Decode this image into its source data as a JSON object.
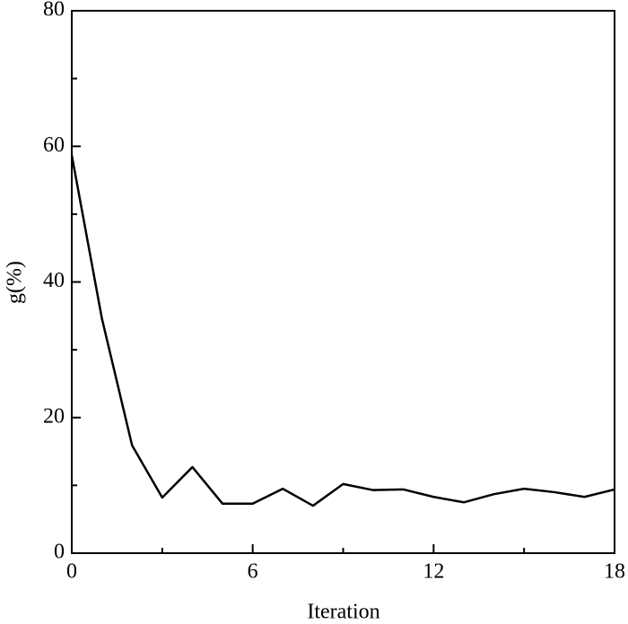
{
  "chart_data": {
    "type": "line",
    "x_label": "Iteration",
    "y_label": "g(%)",
    "x": [
      0,
      1,
      2,
      3,
      4,
      5,
      6,
      7,
      8,
      9,
      10,
      11,
      12,
      13,
      14,
      15,
      16,
      17,
      18
    ],
    "series": [
      {
        "color": "#000000",
        "values": [
          58.7,
          34.6,
          15.9,
          8.2,
          12.7,
          7.3,
          7.3,
          9.5,
          7.0,
          10.2,
          9.3,
          9.4,
          8.3,
          7.5,
          8.7,
          9.5,
          9.0,
          8.3,
          9.4
        ]
      }
    ],
    "xlim": [
      0,
      18
    ],
    "xticks": [
      0,
      6,
      12,
      18
    ],
    "xminorticks": [
      3,
      9,
      15
    ],
    "ylim": [
      0,
      80
    ],
    "yticks": [
      0,
      20,
      40,
      60,
      80
    ],
    "yminorticks": [
      10,
      30,
      50,
      70
    ]
  }
}
